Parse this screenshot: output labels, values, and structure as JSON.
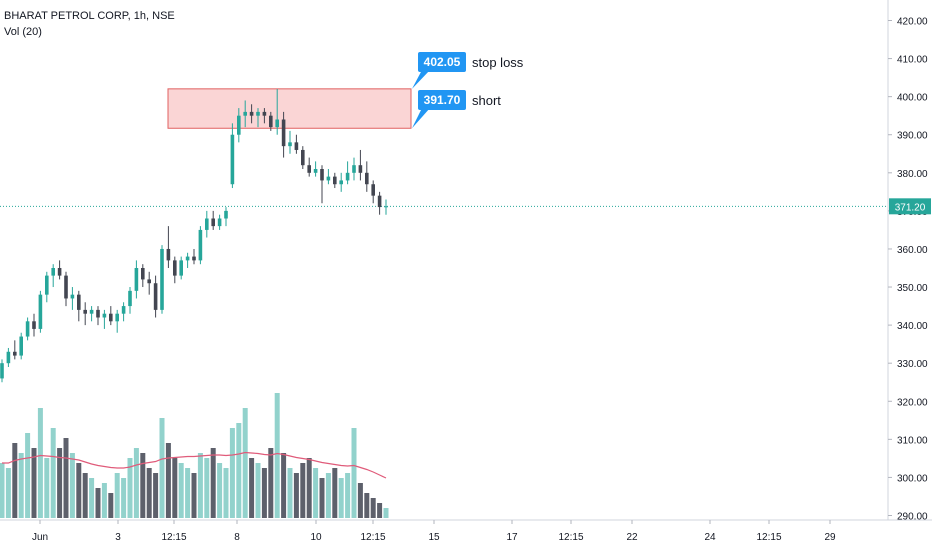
{
  "legend": {
    "title": "BHARAT PETROL CORP, 1h, NSE",
    "volume_label": "Vol (20)"
  },
  "colors": {
    "up": "#26a69a",
    "down": "#434651",
    "vol_up": "#92d2cc",
    "vol_down": "#5d606b",
    "ma": "#e05b7a",
    "zone_fill": "#f8c7c7",
    "zone_stroke": "#e06060",
    "tag": "#2196f3",
    "price_line": "#26a69a",
    "price_tag": "#26a69a"
  },
  "chart_data": {
    "type": "candlestick",
    "title": "BHARAT PETROL CORP, 1h, NSE",
    "price_axis": {
      "range": [
        287,
        424
      ],
      "ticks": [
        290,
        300,
        310,
        320,
        330,
        340,
        350,
        360,
        370,
        380,
        390,
        400,
        410,
        420
      ],
      "tick_labels": [
        "290.00",
        "300.00",
        "310.00",
        "320.00",
        "330.00",
        "340.00",
        "350.00",
        "360.00",
        "370.00",
        "380.00",
        "390.00",
        "400.00",
        "410.00",
        "420.00"
      ]
    },
    "time_axis": {
      "labels": [
        "Jun",
        "3",
        "12:15",
        "8",
        "10",
        "12:15",
        "15",
        "17",
        "12:15",
        "22",
        "24",
        "12:15",
        "29"
      ]
    },
    "candles": [
      [
        326,
        331,
        325,
        330
      ],
      [
        330,
        334,
        329,
        333
      ],
      [
        333,
        336,
        331,
        332
      ],
      [
        332,
        338,
        331,
        337
      ],
      [
        337,
        342,
        336,
        341
      ],
      [
        341,
        343,
        337,
        339
      ],
      [
        339,
        349,
        338,
        348
      ],
      [
        348,
        354,
        346,
        353
      ],
      [
        353,
        356,
        350,
        355
      ],
      [
        355,
        357,
        352,
        353
      ],
      [
        353,
        354,
        345,
        347
      ],
      [
        347,
        350,
        344,
        348
      ],
      [
        348,
        349,
        341,
        344
      ],
      [
        344,
        346,
        340,
        343
      ],
      [
        343,
        345,
        341,
        344
      ],
      [
        344,
        345,
        340,
        342
      ],
      [
        342,
        344,
        339,
        343
      ],
      [
        343,
        345,
        340,
        341
      ],
      [
        341,
        344,
        338,
        343
      ],
      [
        343,
        346,
        341,
        345
      ],
      [
        345,
        350,
        343,
        349
      ],
      [
        349,
        357,
        347,
        355
      ],
      [
        355,
        356,
        350,
        352
      ],
      [
        352,
        354,
        348,
        351
      ],
      [
        351,
        353,
        342,
        344
      ],
      [
        344,
        361,
        343,
        360
      ],
      [
        360,
        366,
        355,
        357
      ],
      [
        357,
        358,
        351,
        353
      ],
      [
        353,
        358,
        352,
        357
      ],
      [
        357,
        359,
        355,
        358
      ],
      [
        358,
        360,
        356,
        357
      ],
      [
        357,
        366,
        356,
        365
      ],
      [
        365,
        370,
        363,
        368
      ],
      [
        368,
        370,
        365,
        366
      ],
      [
        366,
        369,
        365,
        368
      ],
      [
        368,
        371,
        366,
        370
      ],
      [
        377,
        393,
        376,
        390
      ],
      [
        390,
        397,
        388,
        395
      ],
      [
        395,
        399,
        392,
        396
      ],
      [
        396,
        398,
        393,
        395
      ],
      [
        395,
        397,
        392,
        396
      ],
      [
        396,
        397,
        393,
        395
      ],
      [
        395,
        396,
        391,
        392
      ],
      [
        392,
        402,
        390,
        394
      ],
      [
        394,
        396,
        384,
        387
      ],
      [
        387,
        391,
        385,
        388
      ],
      [
        388,
        390,
        385,
        386
      ],
      [
        386,
        387,
        381,
        382
      ],
      [
        382,
        384,
        379,
        380
      ],
      [
        380,
        383,
        379,
        381
      ],
      [
        381,
        382,
        372,
        378
      ],
      [
        378,
        381,
        377,
        379
      ],
      [
        379,
        380,
        376,
        377
      ],
      [
        377,
        380,
        375,
        378
      ],
      [
        378,
        383,
        377,
        380
      ],
      [
        380,
        384,
        378,
        382
      ],
      [
        382,
        386,
        378,
        380
      ],
      [
        380,
        383,
        375,
        377
      ],
      [
        377,
        378,
        372,
        374
      ],
      [
        374,
        375,
        369,
        371
      ],
      [
        371,
        373,
        369,
        371.2
      ]
    ],
    "volume": [
      11,
      10,
      15,
      13,
      17,
      14,
      22,
      12,
      18,
      14,
      16,
      13,
      11,
      9,
      8,
      6,
      7,
      5,
      9,
      8,
      12,
      14,
      13,
      10,
      9,
      20,
      15,
      12,
      11,
      10,
      9,
      13,
      12,
      14,
      11,
      10,
      18,
      19,
      22,
      12,
      11,
      10,
      14,
      25,
      13,
      10,
      9,
      11,
      12,
      10,
      8,
      9,
      10,
      8,
      9,
      18,
      7,
      5,
      4,
      3,
      2
    ],
    "volume_ma": [
      11,
      11,
      11.5,
      11.8,
      12,
      12.2,
      12.5,
      12.4,
      12.3,
      12.1,
      12,
      11.8,
      11.6,
      11.2,
      10.8,
      10.5,
      10.3,
      10.1,
      10,
      10,
      10.2,
      10.6,
      10.9,
      11.1,
      11.3,
      11.8,
      12,
      12.1,
      12.2,
      12.3,
      12.3,
      12.4,
      12.5,
      12.6,
      12.6,
      12.5,
      12.6,
      12.8,
      13.1,
      13,
      12.9,
      12.7,
      12.6,
      12.9,
      12.7,
      12.4,
      12.1,
      11.9,
      11.7,
      11.4,
      11.1,
      10.9,
      10.7,
      10.5,
      10.4,
      10.5,
      10.1,
      9.7,
      9.2,
      8.6,
      8
    ],
    "current_price": "371.20",
    "annotations": [
      {
        "label_value": "402.05",
        "text": "stop loss",
        "price": 402.05
      },
      {
        "label_value": "391.70",
        "text": "short",
        "price": 391.7
      }
    ],
    "zone": {
      "top": 402.05,
      "bottom": 391.7
    },
    "grid": false
  }
}
